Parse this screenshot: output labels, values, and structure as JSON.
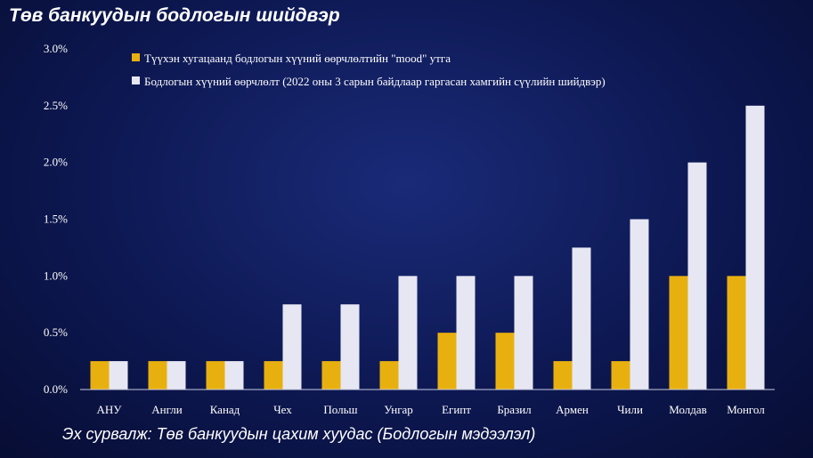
{
  "title": "Төв банкуудын бодлогын шийдвэр",
  "source": "Эх сурвалж: Төв банкуудын цахим хуудас (Бодлогын мэдээлэл)",
  "colors": {
    "series1": "#e8b00f",
    "series2": "#e6e7f2",
    "background": "#0d1852"
  },
  "chart_data": {
    "type": "bar",
    "categories": [
      "АНУ",
      "Англи",
      "Канад",
      "Чех",
      "Польш",
      "Унгар",
      "Египт",
      "Бразил",
      "Армен",
      "Чили",
      "Молдав",
      "Монгол"
    ],
    "series": [
      {
        "name": "Түүхэн хугацаанд бодлогын хүүний өөрчлөлтийн \"mood\" утга",
        "values": [
          0.25,
          0.25,
          0.25,
          0.25,
          0.25,
          0.25,
          0.5,
          0.5,
          0.25,
          0.25,
          1.0,
          1.0
        ]
      },
      {
        "name": "Бодлогын хүүний өөрчлөлт (2022 оны 3 сарын байдлаар гаргасан хамгийн сүүлийн шийдвэр)",
        "values": [
          0.25,
          0.25,
          0.25,
          0.75,
          0.75,
          1.0,
          1.0,
          1.0,
          1.25,
          1.5,
          2.0,
          2.5
        ]
      }
    ],
    "yticks": [
      "0.0%",
      "0.5%",
      "1.0%",
      "1.5%",
      "2.0%",
      "2.5%",
      "3.0%"
    ],
    "ylim": [
      0,
      3.0
    ],
    "grid": false,
    "legend_position": "top"
  }
}
